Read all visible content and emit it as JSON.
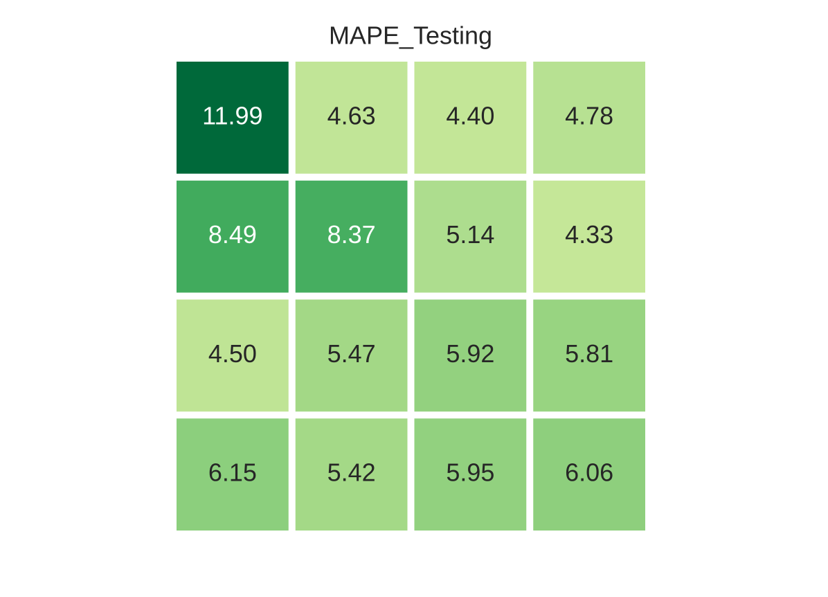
{
  "chart_data": {
    "type": "heatmap",
    "title": "MAPE_Testing",
    "values": [
      [
        11.99,
        4.63,
        4.4,
        4.78
      ],
      [
        8.49,
        8.37,
        5.14,
        4.33
      ],
      [
        4.5,
        5.47,
        5.92,
        5.81
      ],
      [
        6.15,
        5.42,
        5.95,
        6.06
      ]
    ],
    "value_labels": [
      [
        "11.99",
        "4.63",
        "4.40",
        "4.78"
      ],
      [
        "8.49",
        "8.37",
        "5.14",
        "4.33"
      ],
      [
        "4.50",
        "5.47",
        "5.92",
        "5.81"
      ],
      [
        "6.15",
        "5.42",
        "5.95",
        "6.06"
      ]
    ],
    "colors": [
      [
        "#00693a",
        "#c1e597",
        "#c3e697",
        "#b7e192"
      ],
      [
        "#41ab5d",
        "#46ae60",
        "#addd8e",
        "#c5e798"
      ],
      [
        "#bfe495",
        "#a3d886",
        "#93d17f",
        "#98d481"
      ],
      [
        "#8ccf7d",
        "#a4d987",
        "#92d17f",
        "#8ecf7d"
      ]
    ]
  }
}
